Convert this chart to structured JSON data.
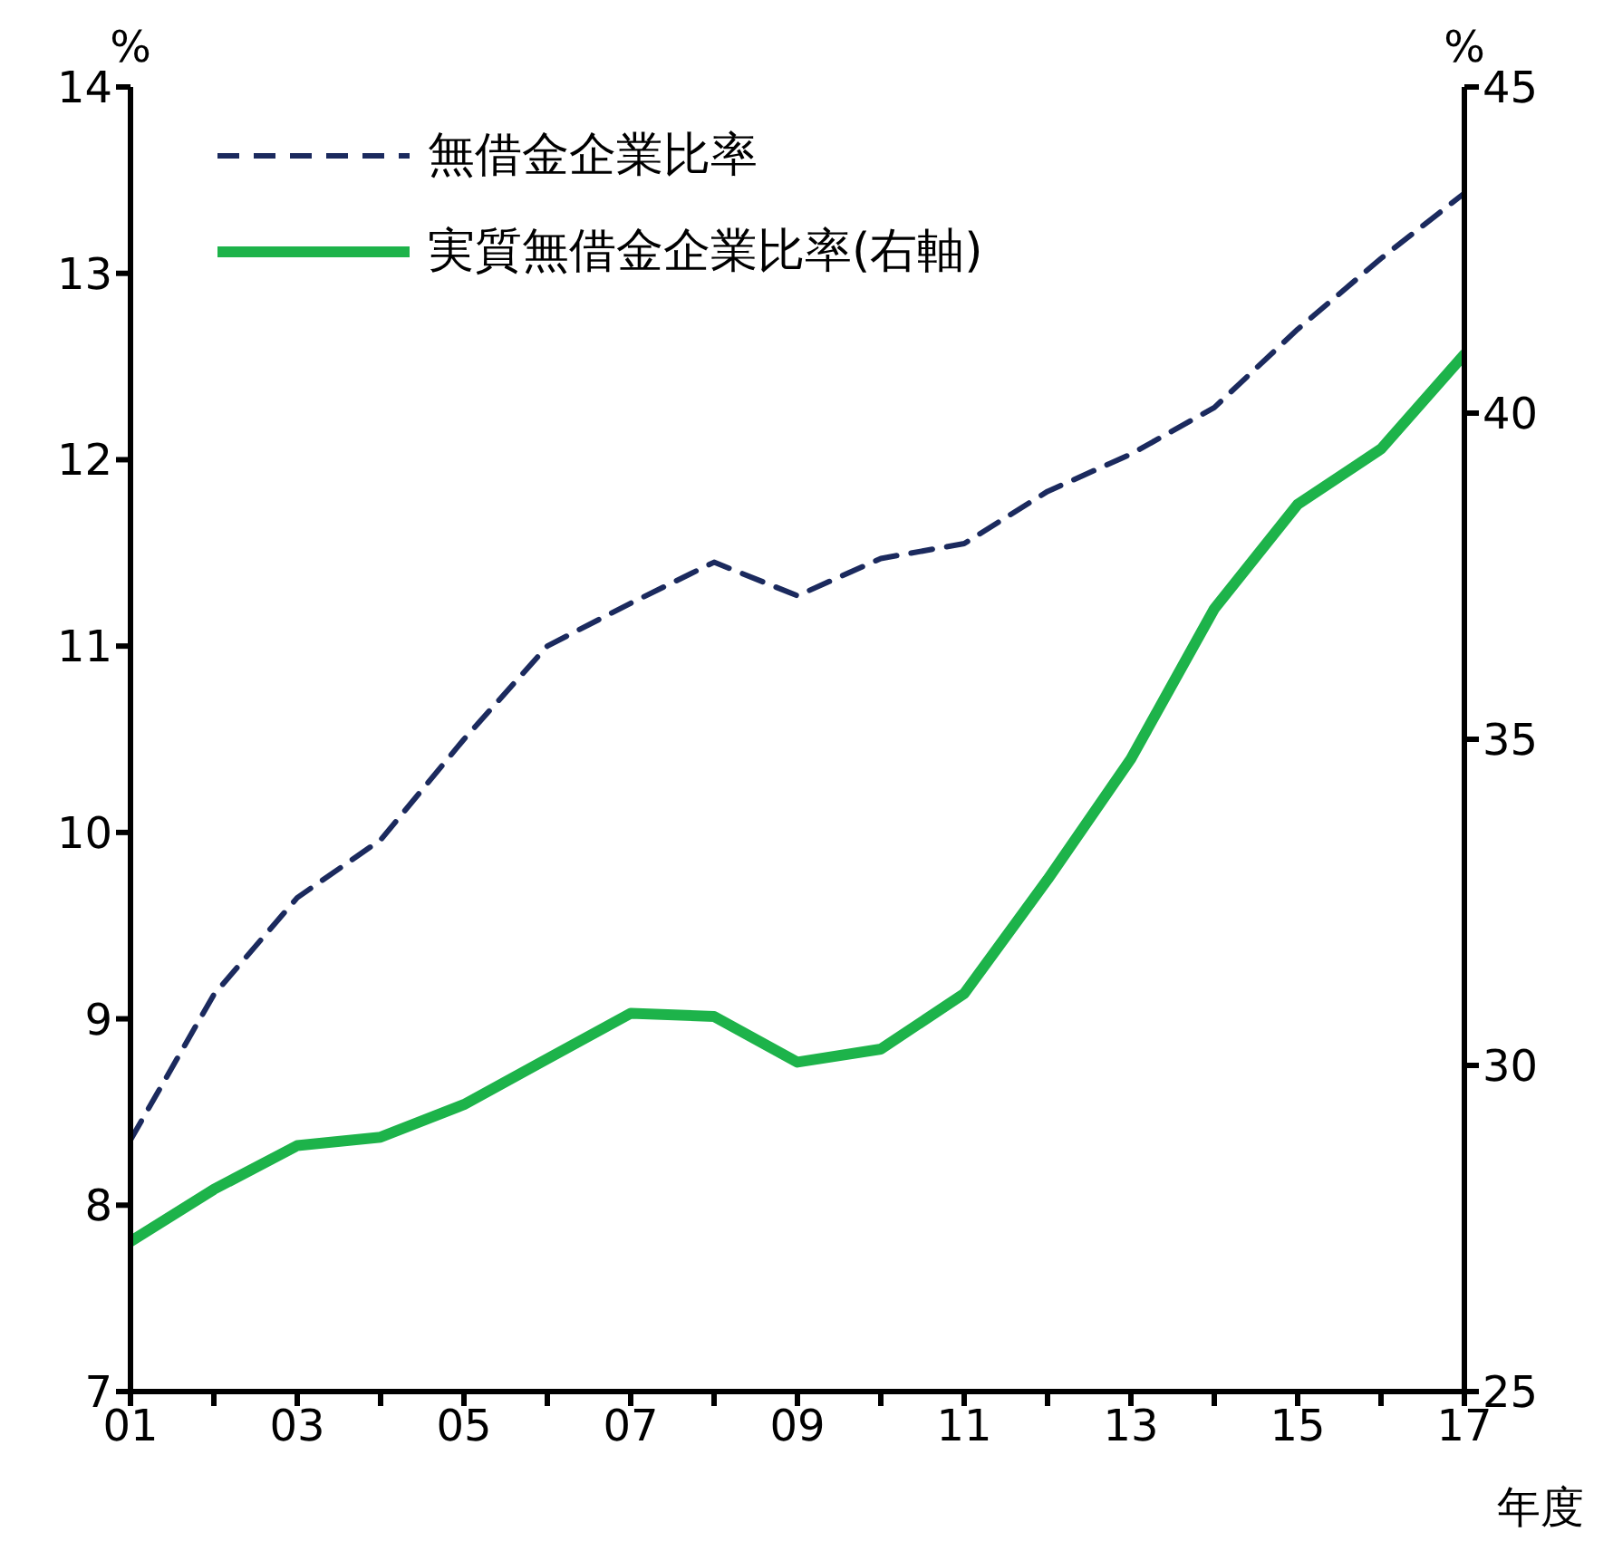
{
  "chart_data": {
    "type": "line",
    "xlabel": "年度",
    "ylabel": "%",
    "y2label": "%",
    "x": [
      1,
      2,
      3,
      4,
      5,
      6,
      7,
      8,
      9,
      10,
      11,
      12,
      13,
      14,
      15,
      16,
      17
    ],
    "series": [
      {
        "name": "無借金企業比率",
        "color": "#1b2a5e",
        "line_style": "dashed",
        "values": [
          8.35,
          9.13,
          9.65,
          9.96,
          10.5,
          11.0,
          11.23,
          11.45,
          11.27,
          11.47,
          11.55,
          11.83,
          12.03,
          12.28,
          12.7,
          13.08,
          13.43
        ]
      },
      {
        "name": "実質無借金企業比率(右軸)",
        "color": "#1db34a",
        "line_style": "solid",
        "axis": "y2",
        "values": [
          27.3,
          28.1,
          28.77,
          28.9,
          29.4,
          30.1,
          30.8,
          30.75,
          30.05,
          30.25,
          31.1,
          32.85,
          34.7,
          37.0,
          38.6,
          39.45,
          40.9
        ]
      }
    ],
    "xlim": [
      1,
      17
    ],
    "xticks": [
      {
        "value": 1,
        "label": "01"
      },
      {
        "value": 2,
        "label": null
      },
      {
        "value": 3,
        "label": "03"
      },
      {
        "value": 4,
        "label": null
      },
      {
        "value": 5,
        "label": "05"
      },
      {
        "value": 6,
        "label": null
      },
      {
        "value": 7,
        "label": "07"
      },
      {
        "value": 8,
        "label": null
      },
      {
        "value": 9,
        "label": "09"
      },
      {
        "value": 10,
        "label": null
      },
      {
        "value": 11,
        "label": "11"
      },
      {
        "value": 12,
        "label": null
      },
      {
        "value": 13,
        "label": "13"
      },
      {
        "value": 14,
        "label": null
      },
      {
        "value": 15,
        "label": "15"
      },
      {
        "value": 16,
        "label": null
      },
      {
        "value": 17,
        "label": "17"
      }
    ],
    "ylim": [
      7,
      14
    ],
    "yticks": [
      7,
      8,
      9,
      10,
      11,
      12,
      13,
      14
    ],
    "y2lim": [
      25,
      45
    ],
    "y2ticks": [
      25,
      30,
      35,
      40,
      45
    ],
    "grid": false,
    "legend": "top left",
    "marker": "none"
  }
}
